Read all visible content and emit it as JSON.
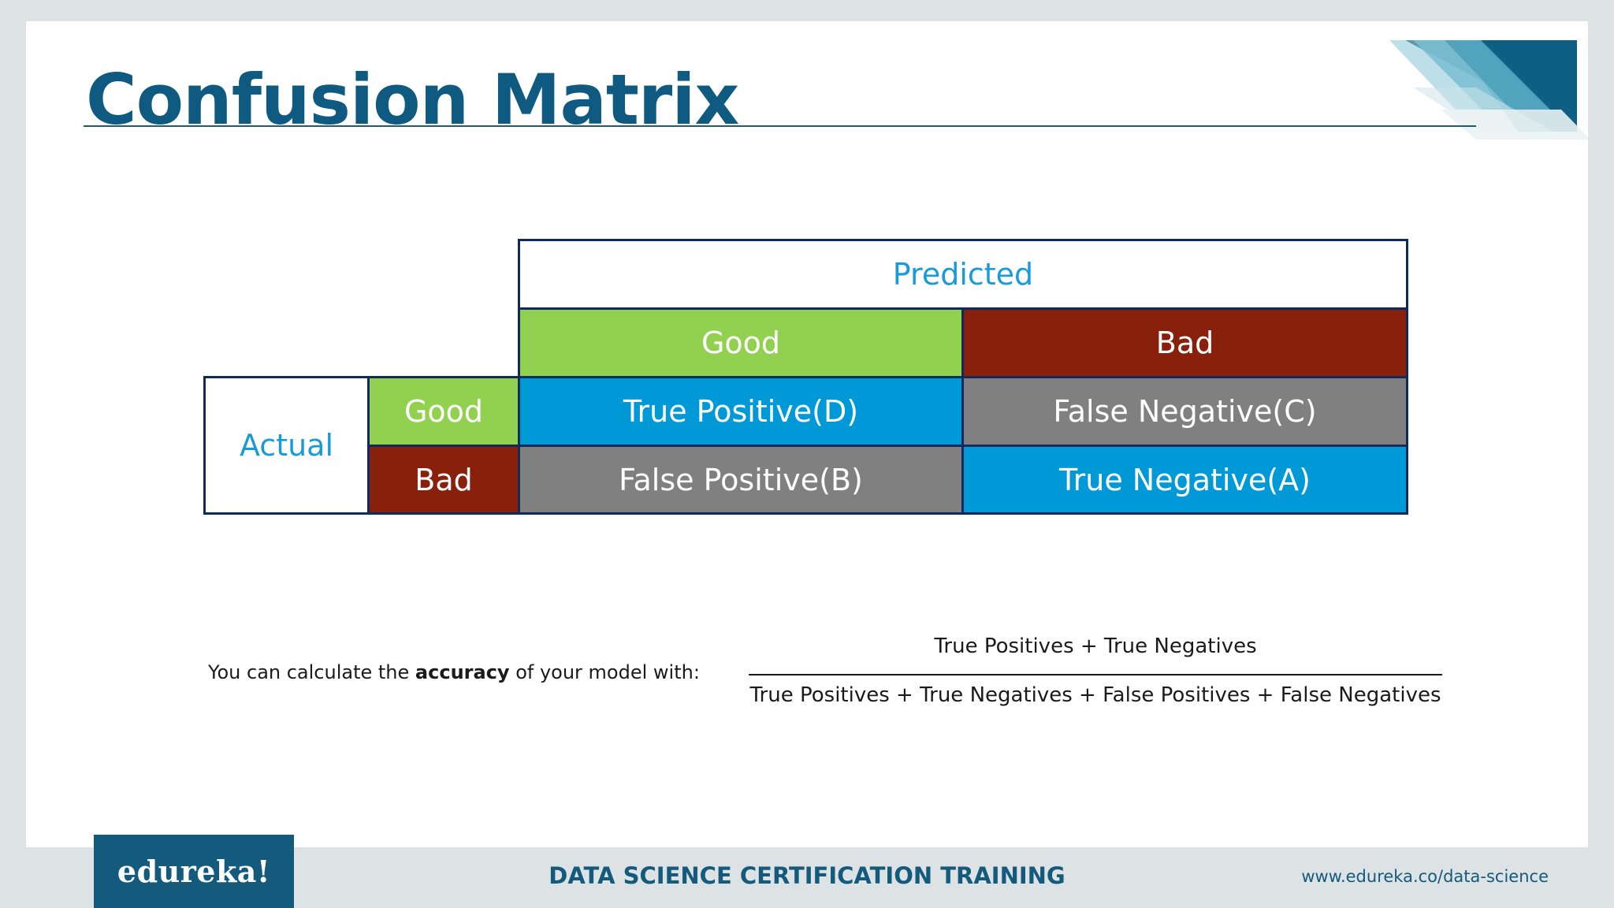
{
  "slide": {
    "title": "Confusion Matrix"
  },
  "matrix": {
    "predicted_label": "Predicted",
    "actual_label": "Actual",
    "predicted_classes": [
      "Good",
      "Bad"
    ],
    "actual_classes": [
      "Good",
      "Bad"
    ],
    "cells": [
      [
        "True Positive(D)",
        "False Negative(C)"
      ],
      [
        "False Positive(B)",
        "True Negative(A)"
      ]
    ],
    "colors": {
      "good": "#92d050",
      "bad": "#88200c",
      "correct": "#0099d8",
      "incorrect": "#808080",
      "header_text": "#1a9bd7",
      "border": "#0f2a5c"
    }
  },
  "accuracy": {
    "prefix": "You can calculate the ",
    "bold": "accuracy",
    "suffix": " of your model with:",
    "numerator": "True Positives + True Negatives",
    "denominator": "True Positives + True Negatives + False Positives + False Negatives"
  },
  "footer": {
    "logo": "edureka!",
    "course": "DATA SCIENCE CERTIFICATION TRAINING",
    "url": "www.edureka.co/data-science"
  }
}
